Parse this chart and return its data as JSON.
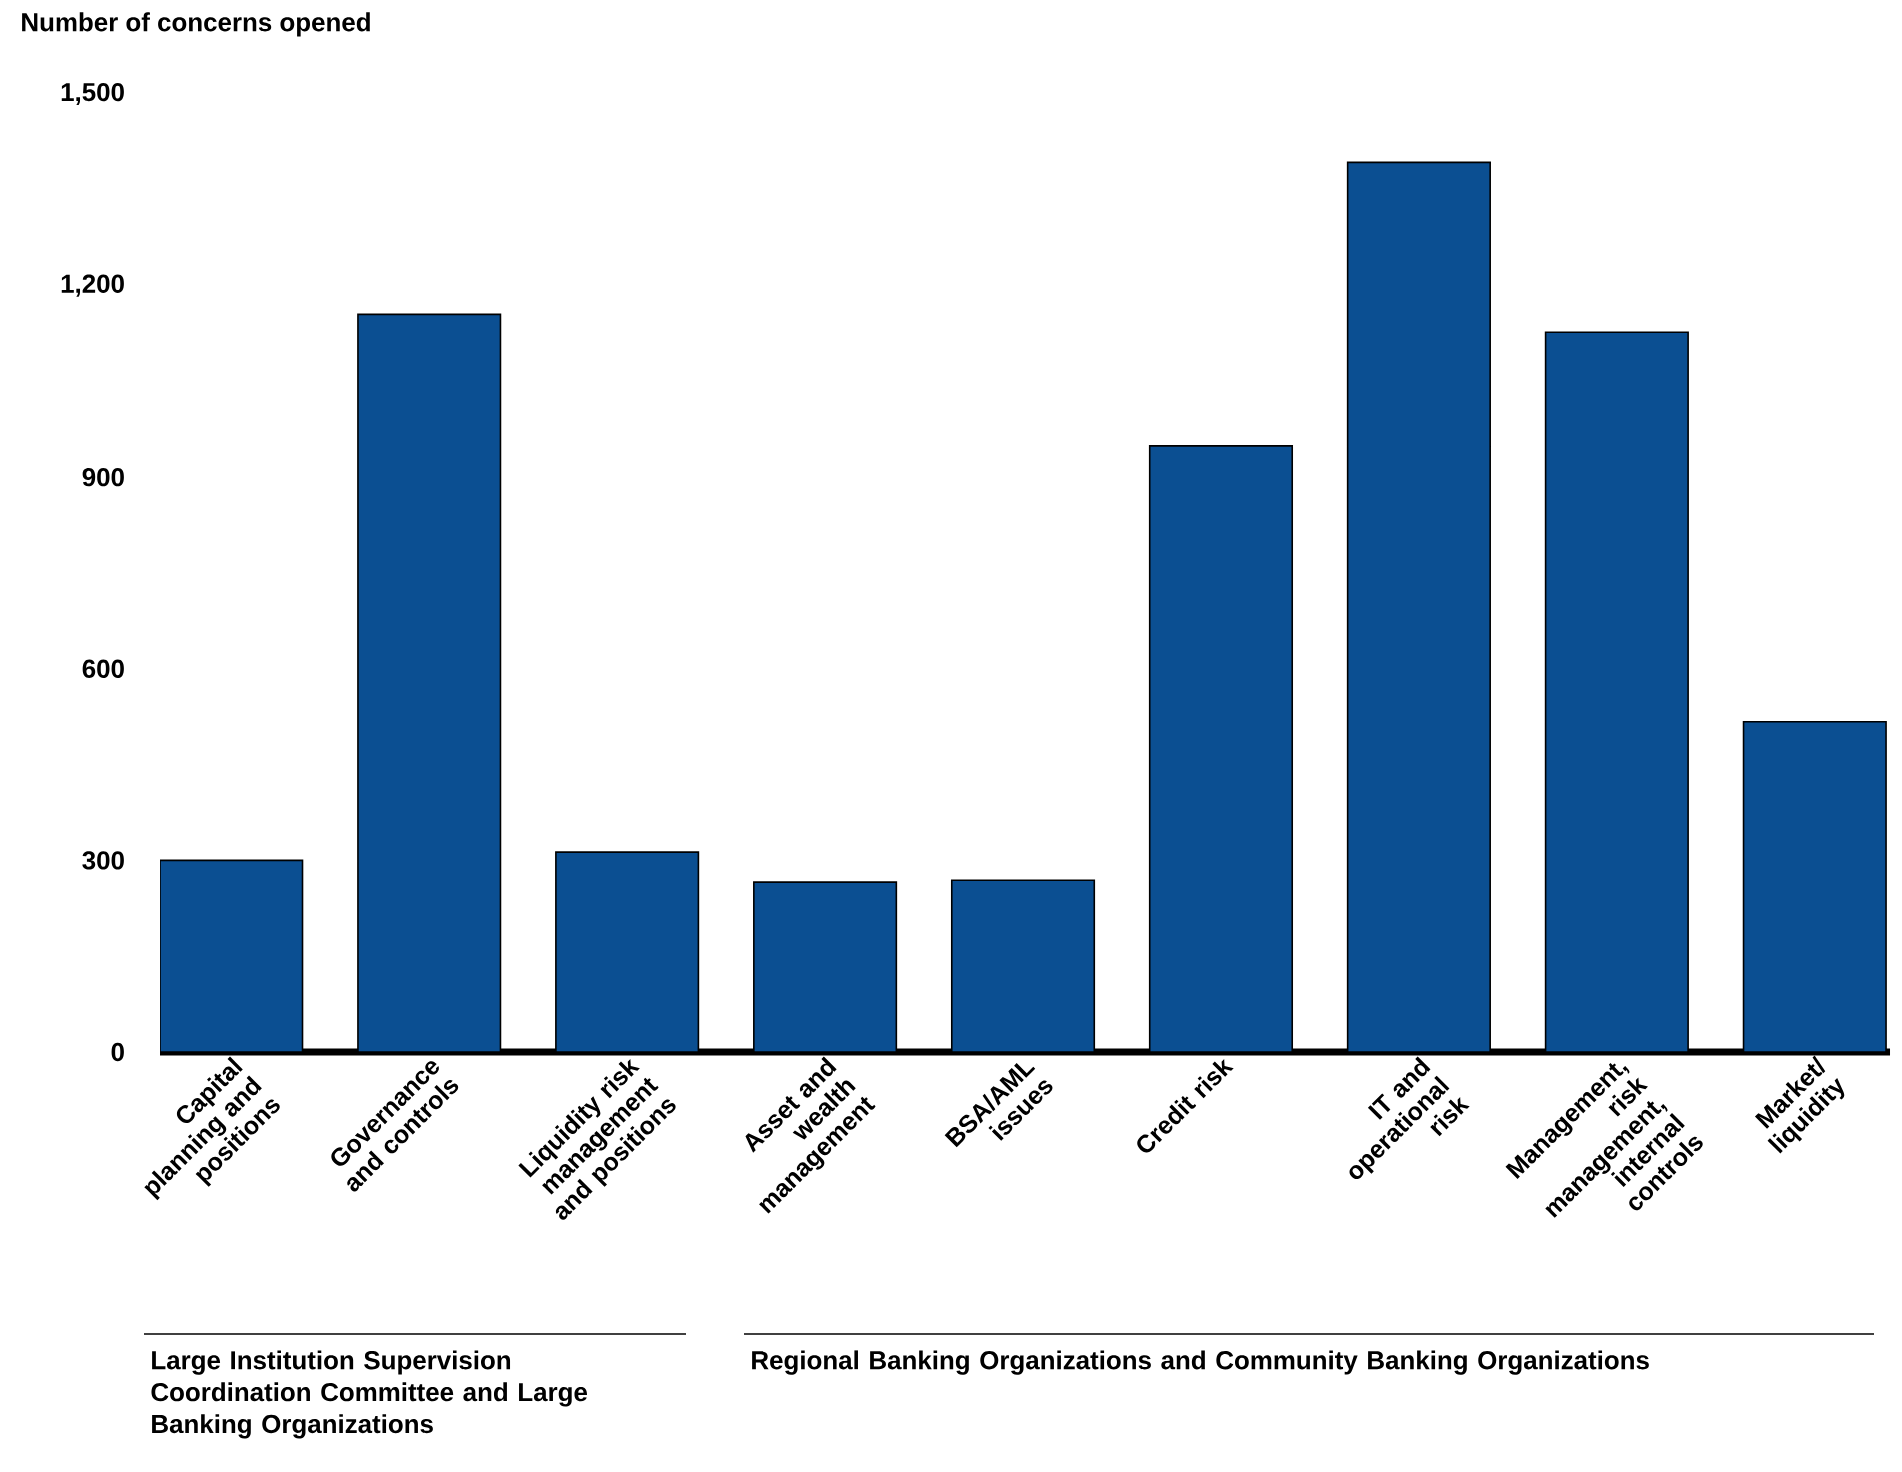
{
  "chart_data": {
    "type": "bar",
    "ylabel": "Number of concerns opened",
    "categories": [
      "Capital planning and positions",
      "Governance and controls",
      "Liquidity risk management and positions",
      "Asset and wealth management",
      "BSA/AML issues",
      "Credit risk",
      "IT and operational risk",
      "Management, risk management, internal controls",
      "Market/ liquidity"
    ],
    "values": [
      300,
      1155,
      313,
      266,
      269,
      949,
      1393,
      1127,
      517
    ],
    "color": "#0b4f92",
    "ylim": [
      0,
      1500
    ],
    "yticks": [
      0,
      300,
      600,
      900,
      {
        "value": 1200,
        "label": "1,200"
      },
      {
        "value": 1500,
        "label": "1,500"
      }
    ],
    "annotations": [
      "Large Institution Supervision Coordination Committee and Large Banking Organizations",
      "Regional Banking Organizations and Community Banking Organizations"
    ]
  }
}
